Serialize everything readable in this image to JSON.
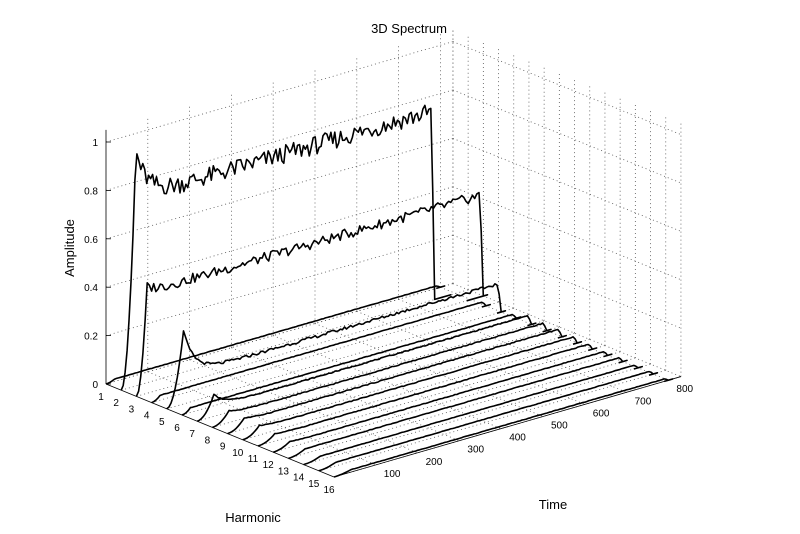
{
  "chart_data": {
    "type": "line",
    "view": "3d-waterfall",
    "title": "3D Spectrum",
    "xlabel": "Harmonic",
    "ylabel": "Time",
    "zlabel": "Amplitude",
    "grid": true,
    "harmonic_ticks": [
      "1",
      "2",
      "3",
      "4",
      "5",
      "6",
      "7",
      "8",
      "9",
      "10",
      "11",
      "12",
      "13",
      "14",
      "15",
      "16"
    ],
    "time_ticks": [
      "100",
      "200",
      "300",
      "400",
      "500",
      "600",
      "700",
      "800"
    ],
    "amplitude_ticks": [
      "0",
      "0.2",
      "0.4",
      "0.6",
      "0.8",
      "1"
    ],
    "xlim": [
      1,
      16
    ],
    "ylim": [
      0,
      830
    ],
    "zlim": [
      0,
      1.05
    ],
    "series": [
      {
        "harmonic": 1,
        "level": 0.01,
        "peak": 0.01,
        "peak_time": 20,
        "end_time": 800
      },
      {
        "harmonic": 2,
        "level": 0.78,
        "peak": 0.97,
        "peak_time": 35,
        "end_time": 750
      },
      {
        "harmonic": 3,
        "level": 0.42,
        "peak": 0.44,
        "peak_time": 25,
        "end_time": 830
      },
      {
        "harmonic": 4,
        "level": 0.02,
        "peak": 0.02,
        "peak_time": 20,
        "end_time": 800
      },
      {
        "harmonic": 5,
        "level": 0.12,
        "peak": 0.3,
        "peak_time": 40,
        "end_time": 800
      },
      {
        "harmonic": 6,
        "level": 0.02,
        "peak": 0.02,
        "peak_time": 20,
        "end_time": 800
      },
      {
        "harmonic": 7,
        "level": 0.04,
        "peak": 0.09,
        "peak_time": 40,
        "end_time": 800
      },
      {
        "harmonic": 8,
        "level": 0.035,
        "peak": 0.05,
        "peak_time": 40,
        "end_time": 800
      },
      {
        "harmonic": 9,
        "level": 0.035,
        "peak": 0.045,
        "peak_time": 40,
        "end_time": 800
      },
      {
        "harmonic": 10,
        "level": 0.03,
        "peak": 0.04,
        "peak_time": 40,
        "end_time": 800
      },
      {
        "harmonic": 11,
        "level": 0.025,
        "peak": 0.03,
        "peak_time": 40,
        "end_time": 800
      },
      {
        "harmonic": 12,
        "level": 0.02,
        "peak": 0.025,
        "peak_time": 40,
        "end_time": 800
      },
      {
        "harmonic": 13,
        "level": 0.02,
        "peak": 0.02,
        "peak_time": 40,
        "end_time": 800
      },
      {
        "harmonic": 14,
        "level": 0.015,
        "peak": 0.015,
        "peak_time": 40,
        "end_time": 800
      },
      {
        "harmonic": 15,
        "level": 0.015,
        "peak": 0.015,
        "peak_time": 40,
        "end_time": 800
      },
      {
        "harmonic": 16,
        "level": 0.01,
        "peak": 0.01,
        "peak_time": 40,
        "end_time": 800
      }
    ]
  }
}
